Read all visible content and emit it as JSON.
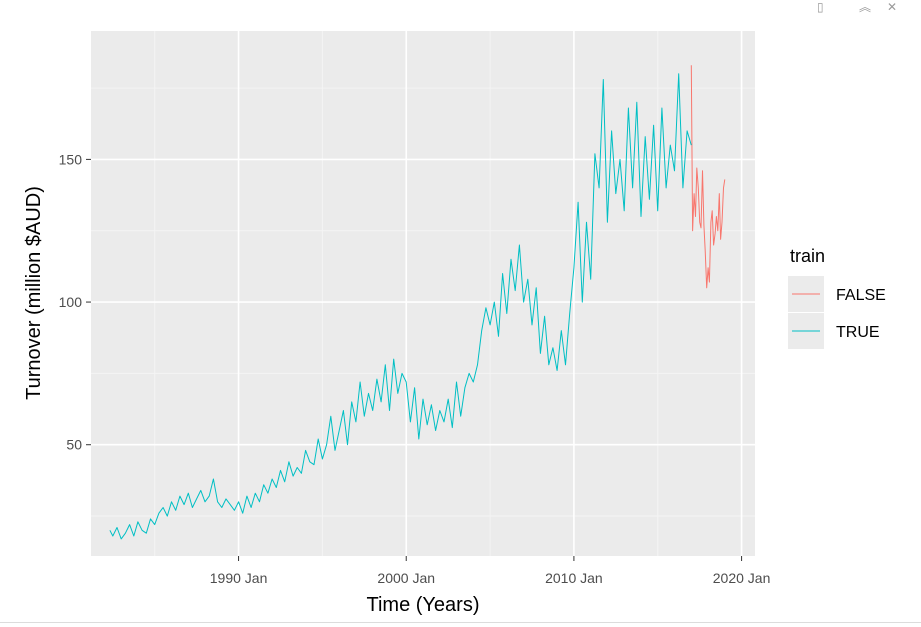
{
  "toolbar": {
    "icons": [
      "export-icon",
      "collapse-icon",
      "close-icon"
    ],
    "export_glyph": "▯",
    "collapse_glyph": "︽",
    "close_glyph": "✕"
  },
  "chart_data": {
    "type": "line",
    "title": "",
    "xlabel": "Time (Years)",
    "ylabel": "Turnover (million $AUD)",
    "xlim": [
      1981.2,
      2020.8
    ],
    "ylim": [
      11,
      195
    ],
    "x_ticks": [
      {
        "value": 1990,
        "label": "1990 Jan"
      },
      {
        "value": 2000,
        "label": "2000 Jan"
      },
      {
        "value": 2010,
        "label": "2010 Jan"
      },
      {
        "value": 2020,
        "label": "2020 Jan"
      }
    ],
    "x_minor": [
      1985,
      1995,
      2005,
      2015
    ],
    "y_ticks": [
      {
        "value": 50,
        "label": "50"
      },
      {
        "value": 100,
        "label": "100"
      },
      {
        "value": 150,
        "label": "150"
      }
    ],
    "y_minor": [
      25,
      75,
      125,
      175
    ],
    "grid": true,
    "legend": {
      "title": "train",
      "position": "right"
    },
    "series": [
      {
        "name": "FALSE",
        "color": "#F8766D",
        "x": [
          2017.0,
          2017.08,
          2017.17,
          2017.25,
          2017.33,
          2017.42,
          2017.5,
          2017.58,
          2017.67,
          2017.75,
          2017.83,
          2017.92,
          2018.0,
          2018.08,
          2018.17,
          2018.25,
          2018.33,
          2018.42,
          2018.5,
          2018.58,
          2018.67,
          2018.75,
          2018.83,
          2018.92,
          2019.0
        ],
        "y": [
          183,
          125,
          138,
          130,
          147,
          140,
          128,
          126,
          146,
          127,
          118,
          105,
          112,
          107,
          128,
          132,
          120,
          124,
          130,
          125,
          138,
          122,
          128,
          140,
          143
        ]
      },
      {
        "name": "TRUE",
        "color": "#00BFC4",
        "x": [
          1982.33,
          1982.5,
          1982.75,
          1983.0,
          1983.25,
          1983.5,
          1983.75,
          1984.0,
          1984.25,
          1984.5,
          1984.75,
          1985.0,
          1985.25,
          1985.5,
          1985.75,
          1986.0,
          1986.25,
          1986.5,
          1986.75,
          1987.0,
          1987.25,
          1987.5,
          1987.75,
          1988.0,
          1988.25,
          1988.5,
          1988.75,
          1989.0,
          1989.25,
          1989.5,
          1989.75,
          1990.0,
          1990.25,
          1990.5,
          1990.75,
          1991.0,
          1991.25,
          1991.5,
          1991.75,
          1992.0,
          1992.25,
          1992.5,
          1992.75,
          1993.0,
          1993.25,
          1993.5,
          1993.75,
          1994.0,
          1994.25,
          1994.5,
          1994.75,
          1995.0,
          1995.25,
          1995.5,
          1995.75,
          1996.0,
          1996.25,
          1996.5,
          1996.75,
          1997.0,
          1997.25,
          1997.5,
          1997.75,
          1998.0,
          1998.25,
          1998.5,
          1998.75,
          1999.0,
          1999.25,
          1999.5,
          1999.75,
          2000.0,
          2000.25,
          2000.5,
          2000.75,
          2001.0,
          2001.25,
          2001.5,
          2001.75,
          2002.0,
          2002.25,
          2002.5,
          2002.75,
          2003.0,
          2003.25,
          2003.5,
          2003.75,
          2004.0,
          2004.25,
          2004.5,
          2004.75,
          2005.0,
          2005.25,
          2005.5,
          2005.75,
          2006.0,
          2006.25,
          2006.5,
          2006.75,
          2007.0,
          2007.25,
          2007.5,
          2007.75,
          2008.0,
          2008.25,
          2008.5,
          2008.75,
          2009.0,
          2009.25,
          2009.5,
          2009.75,
          2010.0,
          2010.25,
          2010.5,
          2010.75,
          2011.0,
          2011.25,
          2011.5,
          2011.75,
          2012.0,
          2012.25,
          2012.5,
          2012.75,
          2013.0,
          2013.25,
          2013.5,
          2013.75,
          2014.0,
          2014.25,
          2014.5,
          2014.75,
          2015.0,
          2015.25,
          2015.5,
          2015.75,
          2016.0,
          2016.25,
          2016.5,
          2016.75,
          2017.0
        ],
        "y": [
          20,
          18,
          21,
          17,
          19,
          22,
          18,
          23,
          20,
          19,
          24,
          22,
          26,
          28,
          25,
          30,
          27,
          32,
          29,
          33,
          28,
          31,
          34,
          30,
          32,
          38,
          30,
          28,
          31,
          29,
          27,
          30,
          26,
          32,
          28,
          33,
          30,
          36,
          33,
          38,
          35,
          41,
          37,
          44,
          39,
          42,
          40,
          48,
          44,
          43,
          52,
          45,
          50,
          60,
          48,
          55,
          62,
          50,
          65,
          58,
          72,
          60,
          68,
          62,
          73,
          65,
          78,
          62,
          80,
          68,
          75,
          72,
          58,
          70,
          52,
          66,
          57,
          64,
          55,
          62,
          58,
          66,
          56,
          72,
          60,
          70,
          75,
          72,
          78,
          90,
          98,
          92,
          100,
          88,
          110,
          96,
          115,
          104,
          120,
          100,
          108,
          92,
          105,
          82,
          95,
          78,
          84,
          76,
          90,
          78,
          96,
          112,
          135,
          100,
          128,
          108,
          152,
          140,
          178,
          128,
          160,
          138,
          150,
          132,
          168,
          140,
          170,
          130,
          158,
          136,
          162,
          132,
          168,
          140,
          155,
          146,
          180,
          140,
          160,
          155
        ]
      }
    ]
  }
}
